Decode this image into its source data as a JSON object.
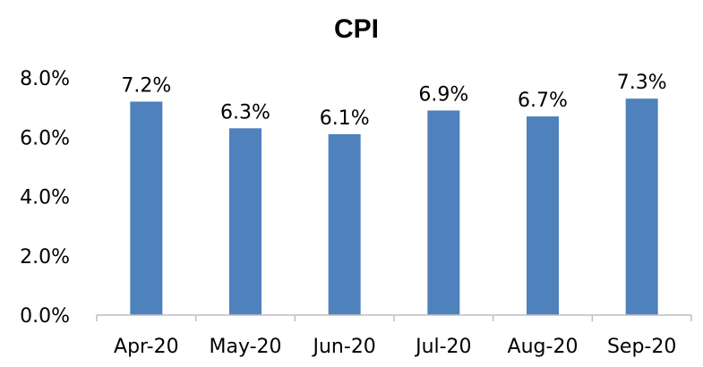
{
  "chart_data": {
    "type": "bar",
    "title": "CPI",
    "xlabel": "",
    "ylabel": "",
    "categories": [
      "Apr-20",
      "May-20",
      "Jun-20",
      "Jul-20",
      "Aug-20",
      "Sep-20"
    ],
    "values": [
      7.2,
      6.3,
      6.1,
      6.9,
      6.7,
      7.3
    ],
    "data_labels": [
      "7.2%",
      "6.3%",
      "6.1%",
      "6.9%",
      "6.7%",
      "7.3%"
    ],
    "yticks": [
      "0.0%",
      "2.0%",
      "4.0%",
      "6.0%",
      "8.0%"
    ],
    "ylim": [
      0,
      8
    ],
    "grid": false,
    "legend": "none",
    "bar_color": "#4f81bd",
    "axis_color": "#bfbfbf"
  }
}
